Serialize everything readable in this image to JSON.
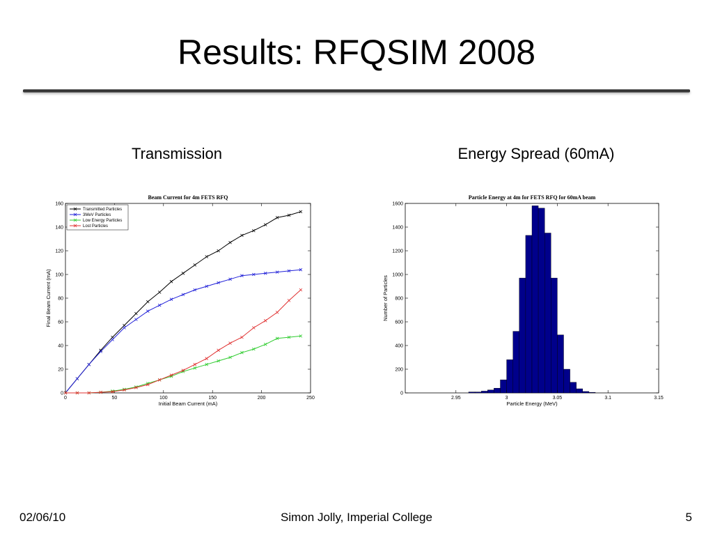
{
  "slide": {
    "title": "Results: RFQSIM 2008",
    "left_caption": "Transmission",
    "right_caption": "Energy Spread (60mA)",
    "footer_date": "02/06/10",
    "footer_author": "Simon Jolly, Imperial College",
    "footer_page": "5"
  },
  "chart_data": [
    {
      "type": "line",
      "title": "Beam Current for 4m FETS RFQ",
      "xlabel": "Initial Beam Current (mA)",
      "ylabel": "Final Beam Current (mA)",
      "xlim": [
        0,
        250
      ],
      "ylim": [
        0,
        160
      ],
      "xticks": [
        0,
        50,
        100,
        150,
        200,
        250
      ],
      "yticks": [
        0,
        20,
        40,
        60,
        80,
        100,
        120,
        140,
        160
      ],
      "grid": false,
      "legend_position": "top-left",
      "x": [
        0,
        12,
        24,
        36,
        48,
        60,
        72,
        84,
        96,
        108,
        120,
        132,
        144,
        156,
        168,
        180,
        192,
        204,
        216,
        228,
        240
      ],
      "series": [
        {
          "name": "Transmitted Particles",
          "color": "#000000",
          "marker": "x",
          "values": [
            0,
            12,
            24,
            36,
            47,
            57,
            67,
            77,
            85,
            94,
            101,
            108,
            115,
            120,
            127,
            133,
            137,
            142,
            148,
            150,
            153
          ]
        },
        {
          "name": "3MeV Particles",
          "color": "#1f1fd8",
          "marker": "x",
          "values": [
            0,
            12,
            24,
            35,
            45,
            55,
            62,
            69,
            74,
            79,
            83,
            87,
            90,
            93,
            96,
            99,
            100,
            101,
            102,
            103,
            104
          ]
        },
        {
          "name": "Low Energy Particles",
          "color": "#2ecc2e",
          "marker": "x",
          "values": [
            0,
            0,
            0,
            0.5,
            1.5,
            3,
            5,
            8,
            11,
            14,
            18,
            21,
            24,
            27,
            30,
            34,
            37,
            41,
            46,
            47,
            48
          ]
        },
        {
          "name": "Lost Particles",
          "color": "#e03030",
          "marker": "x",
          "values": [
            0,
            0,
            0,
            0.5,
            1,
            2.5,
            4.5,
            7,
            11,
            15,
            19,
            24,
            29,
            36,
            42,
            47,
            55,
            61,
            68,
            78,
            87
          ]
        }
      ]
    },
    {
      "type": "bar",
      "title": "Particle Energy at 4m for FETS RFQ for 60mA beam",
      "xlabel": "Particle Energy (MeV)",
      "ylabel": "Number of Particles",
      "xlim": [
        2.9,
        3.15
      ],
      "ylim": [
        0,
        1600
      ],
      "xticks": [
        2.95,
        3,
        3.05,
        3.1,
        3.15
      ],
      "yticks": [
        0,
        200,
        400,
        600,
        800,
        1000,
        1200,
        1400,
        1600
      ],
      "grid": false,
      "bar_color": "#00008b",
      "bin_width": 0.00625,
      "bin_starts": [
        2.9625,
        2.96875,
        2.975,
        2.98125,
        2.9875,
        2.99375,
        3.0,
        3.00625,
        3.0125,
        3.01875,
        3.025,
        3.03125,
        3.0375,
        3.04375,
        3.05,
        3.05625,
        3.0625,
        3.06875,
        3.075,
        3.08125
      ],
      "values": [
        8,
        8,
        15,
        25,
        40,
        110,
        280,
        520,
        970,
        1330,
        1580,
        1560,
        1350,
        970,
        490,
        200,
        90,
        35,
        12,
        5
      ]
    }
  ]
}
